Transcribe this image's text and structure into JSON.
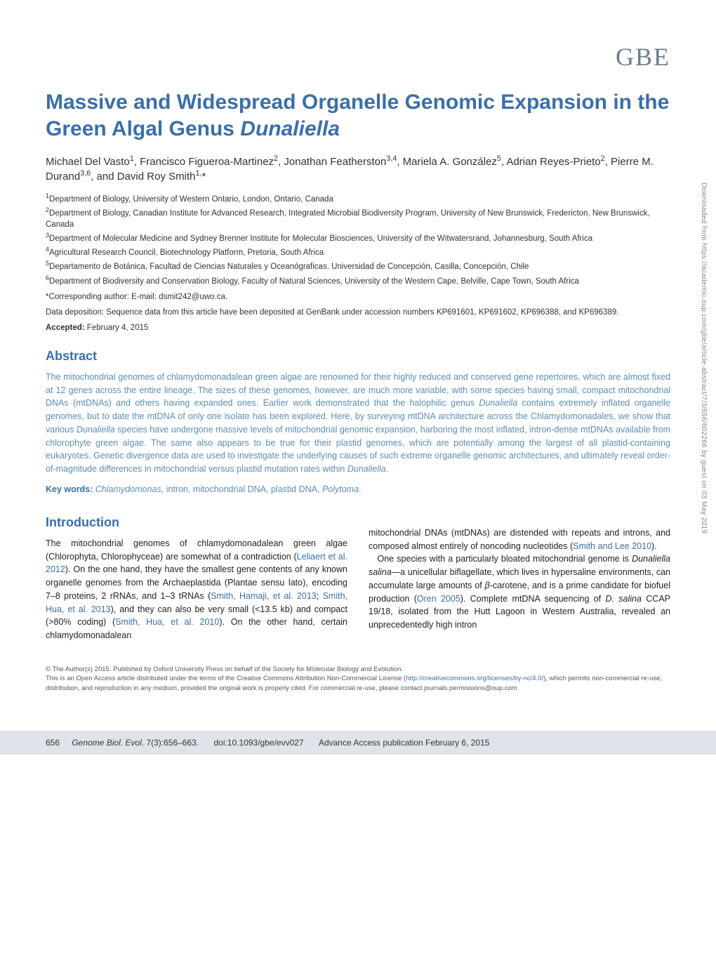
{
  "journal_logo": "GBE",
  "title_part1": "Massive and Widespread Organelle Genomic Expansion in the Green Algal Genus ",
  "title_italic": "Dunaliella",
  "authors_html": "Michael Del Vasto<sup>1</sup>, Francisco Figueroa-Martinez<sup>2</sup>, Jonathan Featherston<sup>3,4</sup>, Mariela A. González<sup>5</sup>, Adrian Reyes-Prieto<sup>2</sup>, Pierre M. Durand<sup>3,6</sup>, and David Roy Smith<sup>1,</sup>*",
  "affiliations": [
    "<sup>1</sup>Department of Biology, University of Western Ontario, London, Ontario, Canada",
    "<sup>2</sup>Department of Biology, Canadian Institute for Advanced Research, Integrated Microbial Biodiversity Program, University of New Brunswick, Fredericton, New Brunswick, Canada",
    "<sup>3</sup>Department of Molecular Medicine and Sydney Brenner Institute for Molecular Biosciences, University of the Witwatersrand, Johannesburg, South Africa",
    "<sup>4</sup>Agricultural Research Council, Biotechnology Platform, Pretoria, South Africa",
    "<sup>5</sup>Departamento de Botánica, Facultad de Ciencias Naturales y Oceanógraficas. Universidad de Concepción, Casilla, Concepción, Chile",
    "<sup>6</sup>Department of Biodiversity and Conservation Biology, Faculty of Natural Sciences, University of the Western Cape, Belville, Cape Town, South Africa"
  ],
  "corresponding": "*Corresponding author: E-mail: dsmit242@uwo.ca.",
  "data_deposition": "Data deposition: Sequence data from this article have been deposited at GenBank under accession numbers KP691601, KP691602, KP696388, and KP696389.",
  "accepted_label": "Accepted:",
  "accepted_date": " February 4, 2015",
  "abstract_header": "Abstract",
  "abstract_html": "The mitochondrial genomes of chlamydomonadalean green algae are renowned for their highly reduced and conserved gene repertoires, which are almost fixed at 12 genes across the entire lineage. The sizes of these genomes, however, are much more variable, with some species having small, compact mitochondrial DNAs (mtDNAs) and others having expanded ones. Earlier work demonstrated that the halophilic genus <span class=\"italic\">Dunaliella</span> contains extremely inflated organelle genomes, but to date the mtDNA of only one isolate has been explored. Here, by surveying mtDNA architecture across the Chlamydomonadales, we show that various <span class=\"italic\">Dunaliella</span> species have undergone massive levels of mitochondrial genomic expansion, harboring the most inflated, intron-dense mtDNAs available from chlorophyte green algae. The same also appears to be true for their plastid genomes, which are potentially among the largest of all plastid-containing eukaryotes. Genetic divergence data are used to investigate the underlying causes of such extreme organelle genomic architectures, and ultimately reveal order-of-magnitude differences in mitochondrial versus plastid mutation rates within <span class=\"italic\">Dunaliella</span>.",
  "keywords_label": "Key words:",
  "keywords_html": " <span class=\"italic\">Chlamydomonas</span>, intron, mitochondrial DNA, plastid DNA, <span class=\"italic\">Polytoma</span>.",
  "intro_header": "Introduction",
  "intro_col1_html": "The mitochondrial genomes of chlamydomonadalean green algae (Chlorophyta, Chlorophyceae) are somewhat of a contradiction (<span class=\"ref\">Leliaert et al. 2012</span>). On the one hand, they have the smallest gene contents of any known organelle genomes from the Archaeplastida (Plantae sensu lato), encoding 7–8 proteins, 2 rRNAs, and 1–3 tRNAs (<span class=\"ref\">Smith, Hamaji, et al. 2013</span>; <span class=\"ref\">Smith, Hua, et al. 2013</span>), and they can also be very small (&lt;13.5 kb) and compact (&gt;80% coding) (<span class=\"ref\">Smith, Hua, et al. 2010</span>). On the other hand, certain chlamydomonadalean",
  "intro_col2_html": "mitochondrial DNAs (mtDNAs) are distended with repeats and introns, and composed almost entirely of noncoding nucleotides (<span class=\"ref\">Smith and Lee 2010</span>).<br>&nbsp;&nbsp;&nbsp;One species with a particularly bloated mitochondrial genome is <span class=\"italic\">Dunaliella salina</span>—a unicellular biflagellate, which lives in hypersaline environments, can accumulate large amounts of <span class=\"greek\">β</span>-carotene, and is a prime candidate for biofuel production (<span class=\"ref\">Oren 2005</span>). Complete mtDNA sequencing of <span class=\"italic\">D. salina</span> CCAP 19/18, isolated from the Hutt Lagoon in Western Australia, revealed an unprecedentedly high intron",
  "copyright_html": "© The Author(s) 2015. Published by Oxford University Press on behalf of the Society for Molecular Biology and Evolution.<br>This is an Open Access article distributed under the terms of the Creative Commons Attribution Non-Commercial License (<a href=\"#\">http://creativecommons.org/licenses/by-nc/4.0/</a>), which permits non-commercial re-use, distribution, and reproduction in any medium, provided the original work is properly cited. For commercial re-use, please contact journals.permissions@oup.com",
  "footer_page": "656",
  "footer_journal": "Genome Biol. Evol.",
  "footer_issue": " 7(3):656–663.",
  "footer_doi": "doi:10.1093/gbe/evv027",
  "footer_advance": "Advance Access publication February 6, 2015",
  "side_text": "Downloaded from https://academic.oup.com/gbe/article-abstract/7/3/656/602266 by guest on 03 May 2019",
  "colors": {
    "primary_blue": "#3b6fa8",
    "abstract_blue": "#5b8db5",
    "logo_grey": "#6b7c8e",
    "footer_bg": "#e0e4ea"
  }
}
